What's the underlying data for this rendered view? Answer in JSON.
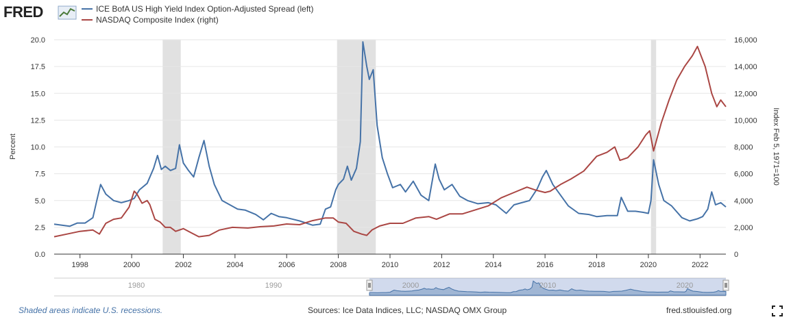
{
  "logo": {
    "text": "FRED"
  },
  "legend": [
    {
      "label": "ICE BofA US High Yield Index Option-Adjusted Spread (left)",
      "color": "#4572a7"
    },
    {
      "label": "NASDAQ Composite Index (right)",
      "color": "#aa4643"
    }
  ],
  "footer": {
    "note": "Shaded areas indicate U.S. recessions.",
    "sources": "Sources: Ice Data Indices, LLC; NASDAQ OMX Group",
    "url": "fred.stlouisfed.org"
  },
  "chart_data": {
    "type": "line",
    "ylabel_left": "Percent",
    "ylabel_right": "Index Feb 5, 1971=100",
    "xlim": [
      1997.0,
      2023.0
    ],
    "ylim_left": [
      0,
      20
    ],
    "ylim_right": [
      0,
      16000
    ],
    "x_ticks": [
      "1998",
      "2000",
      "2002",
      "2004",
      "2006",
      "2008",
      "2010",
      "2012",
      "2014",
      "2016",
      "2018",
      "2020",
      "2022"
    ],
    "y_ticks_left": [
      "0.0",
      "2.5",
      "5.0",
      "7.5",
      "10.0",
      "12.5",
      "15.0",
      "17.5",
      "20.0"
    ],
    "y_ticks_right": [
      "0",
      "2,000",
      "4,000",
      "6,000",
      "8,000",
      "10,000",
      "12,000",
      "14,000",
      "16,000"
    ],
    "recessions": [
      [
        2001.2,
        2001.9
      ],
      [
        2007.95,
        2009.45
      ],
      [
        2020.1,
        2020.3
      ]
    ],
    "navigator_labels": [
      "1980",
      "1990",
      "2000",
      "2010",
      "2020"
    ],
    "grid": true,
    "legend_position": "top-left",
    "series": [
      {
        "name": "ICE BofA US High Yield Index Option-Adjusted Spread (left)",
        "color": "#4572a7",
        "axis": "left",
        "x": [
          1997.0,
          1997.3,
          1997.6,
          1997.9,
          1998.2,
          1998.5,
          1998.65,
          1998.8,
          1999.0,
          1999.3,
          1999.6,
          1999.9,
          2000.1,
          2000.3,
          2000.6,
          2000.85,
          2001.0,
          2001.15,
          2001.3,
          2001.5,
          2001.7,
          2001.85,
          2002.0,
          2002.2,
          2002.4,
          2002.6,
          2002.8,
          2003.0,
          2003.2,
          2003.5,
          2003.8,
          2004.1,
          2004.4,
          2004.8,
          2005.1,
          2005.4,
          2005.7,
          2006.0,
          2006.5,
          2007.0,
          2007.3,
          2007.5,
          2007.7,
          2007.9,
          2008.0,
          2008.2,
          2008.35,
          2008.5,
          2008.7,
          2008.85,
          2008.95,
          2009.1,
          2009.2,
          2009.35,
          2009.5,
          2009.7,
          2009.9,
          2010.1,
          2010.4,
          2010.6,
          2010.9,
          2011.2,
          2011.5,
          2011.75,
          2011.9,
          2012.1,
          2012.4,
          2012.7,
          2013.0,
          2013.4,
          2013.8,
          2014.1,
          2014.5,
          2014.8,
          2015.1,
          2015.4,
          2015.7,
          2015.9,
          2016.05,
          2016.3,
          2016.6,
          2016.9,
          2017.3,
          2017.7,
          2018.0,
          2018.4,
          2018.8,
          2018.95,
          2019.2,
          2019.5,
          2019.8,
          2020.0,
          2020.1,
          2020.2,
          2020.4,
          2020.6,
          2020.9,
          2021.3,
          2021.6,
          2021.9,
          2022.1,
          2022.3,
          2022.45,
          2022.6,
          2022.8,
          2023.0
        ],
        "values": [
          2.8,
          2.7,
          2.6,
          2.9,
          2.9,
          3.4,
          5.0,
          6.5,
          5.6,
          5.0,
          4.8,
          5.0,
          5.2,
          6.0,
          6.6,
          8.0,
          9.2,
          7.9,
          8.2,
          7.8,
          8.0,
          10.2,
          8.5,
          7.8,
          7.2,
          9.0,
          10.6,
          8.2,
          6.5,
          5.0,
          4.6,
          4.2,
          4.1,
          3.7,
          3.2,
          3.8,
          3.5,
          3.4,
          3.1,
          2.7,
          2.8,
          4.2,
          4.4,
          6.0,
          6.5,
          7.0,
          8.2,
          6.9,
          8.0,
          10.5,
          19.8,
          17.5,
          16.3,
          17.2,
          12.0,
          9.0,
          7.5,
          6.2,
          6.5,
          5.8,
          6.8,
          5.5,
          5.0,
          8.4,
          7.0,
          6.0,
          6.5,
          5.4,
          5.0,
          4.7,
          4.8,
          4.6,
          3.8,
          4.6,
          4.8,
          5.0,
          6.1,
          7.2,
          7.8,
          6.5,
          5.5,
          4.5,
          3.8,
          3.7,
          3.5,
          3.6,
          3.6,
          5.3,
          4.0,
          4.0,
          3.9,
          3.8,
          5.0,
          8.8,
          6.5,
          5.0,
          4.5,
          3.4,
          3.1,
          3.3,
          3.5,
          4.2,
          5.8,
          4.6,
          4.8,
          4.4
        ]
      },
      {
        "name": "NASDAQ Composite Index (right)",
        "color": "#aa4643",
        "axis": "right",
        "x": [
          1997.0,
          1997.5,
          1998.0,
          1998.5,
          1998.75,
          1999.0,
          1999.3,
          1999.6,
          1999.9,
          2000.1,
          2000.2,
          2000.4,
          2000.6,
          2000.7,
          2000.9,
          2001.1,
          2001.3,
          2001.5,
          2001.7,
          2002.0,
          2002.3,
          2002.6,
          2002.8,
          2003.0,
          2003.4,
          2003.9,
          2004.5,
          2005.0,
          2005.5,
          2006.0,
          2006.5,
          2007.0,
          2007.5,
          2007.8,
          2008.0,
          2008.3,
          2008.6,
          2008.9,
          2009.1,
          2009.3,
          2009.6,
          2010.0,
          2010.5,
          2011.0,
          2011.5,
          2011.8,
          2012.3,
          2012.8,
          2013.3,
          2013.8,
          2014.3,
          2014.8,
          2015.3,
          2015.6,
          2016.0,
          2016.2,
          2016.6,
          2017.0,
          2017.5,
          2018.0,
          2018.4,
          2018.7,
          2018.9,
          2019.2,
          2019.6,
          2019.9,
          2020.05,
          2020.2,
          2020.5,
          2020.8,
          2021.1,
          2021.4,
          2021.7,
          2021.9,
          2022.2,
          2022.45,
          2022.65,
          2022.8,
          2023.0
        ],
        "values": [
          1300,
          1500,
          1700,
          1800,
          1500,
          2300,
          2600,
          2700,
          3500,
          4700,
          4500,
          3800,
          4000,
          3700,
          2600,
          2400,
          2000,
          2000,
          1700,
          1900,
          1600,
          1300,
          1350,
          1400,
          1800,
          2000,
          1950,
          2050,
          2100,
          2250,
          2200,
          2500,
          2700,
          2700,
          2400,
          2300,
          1700,
          1500,
          1400,
          1800,
          2100,
          2300,
          2300,
          2700,
          2800,
          2600,
          3000,
          3000,
          3300,
          3600,
          4200,
          4600,
          5000,
          4800,
          4600,
          4700,
          5200,
          5600,
          6200,
          7300,
          7600,
          8000,
          7000,
          7200,
          8000,
          8900,
          9200,
          7700,
          9800,
          11500,
          13000,
          14000,
          14800,
          15500,
          14000,
          12000,
          11000,
          11500,
          11000
        ]
      }
    ]
  }
}
